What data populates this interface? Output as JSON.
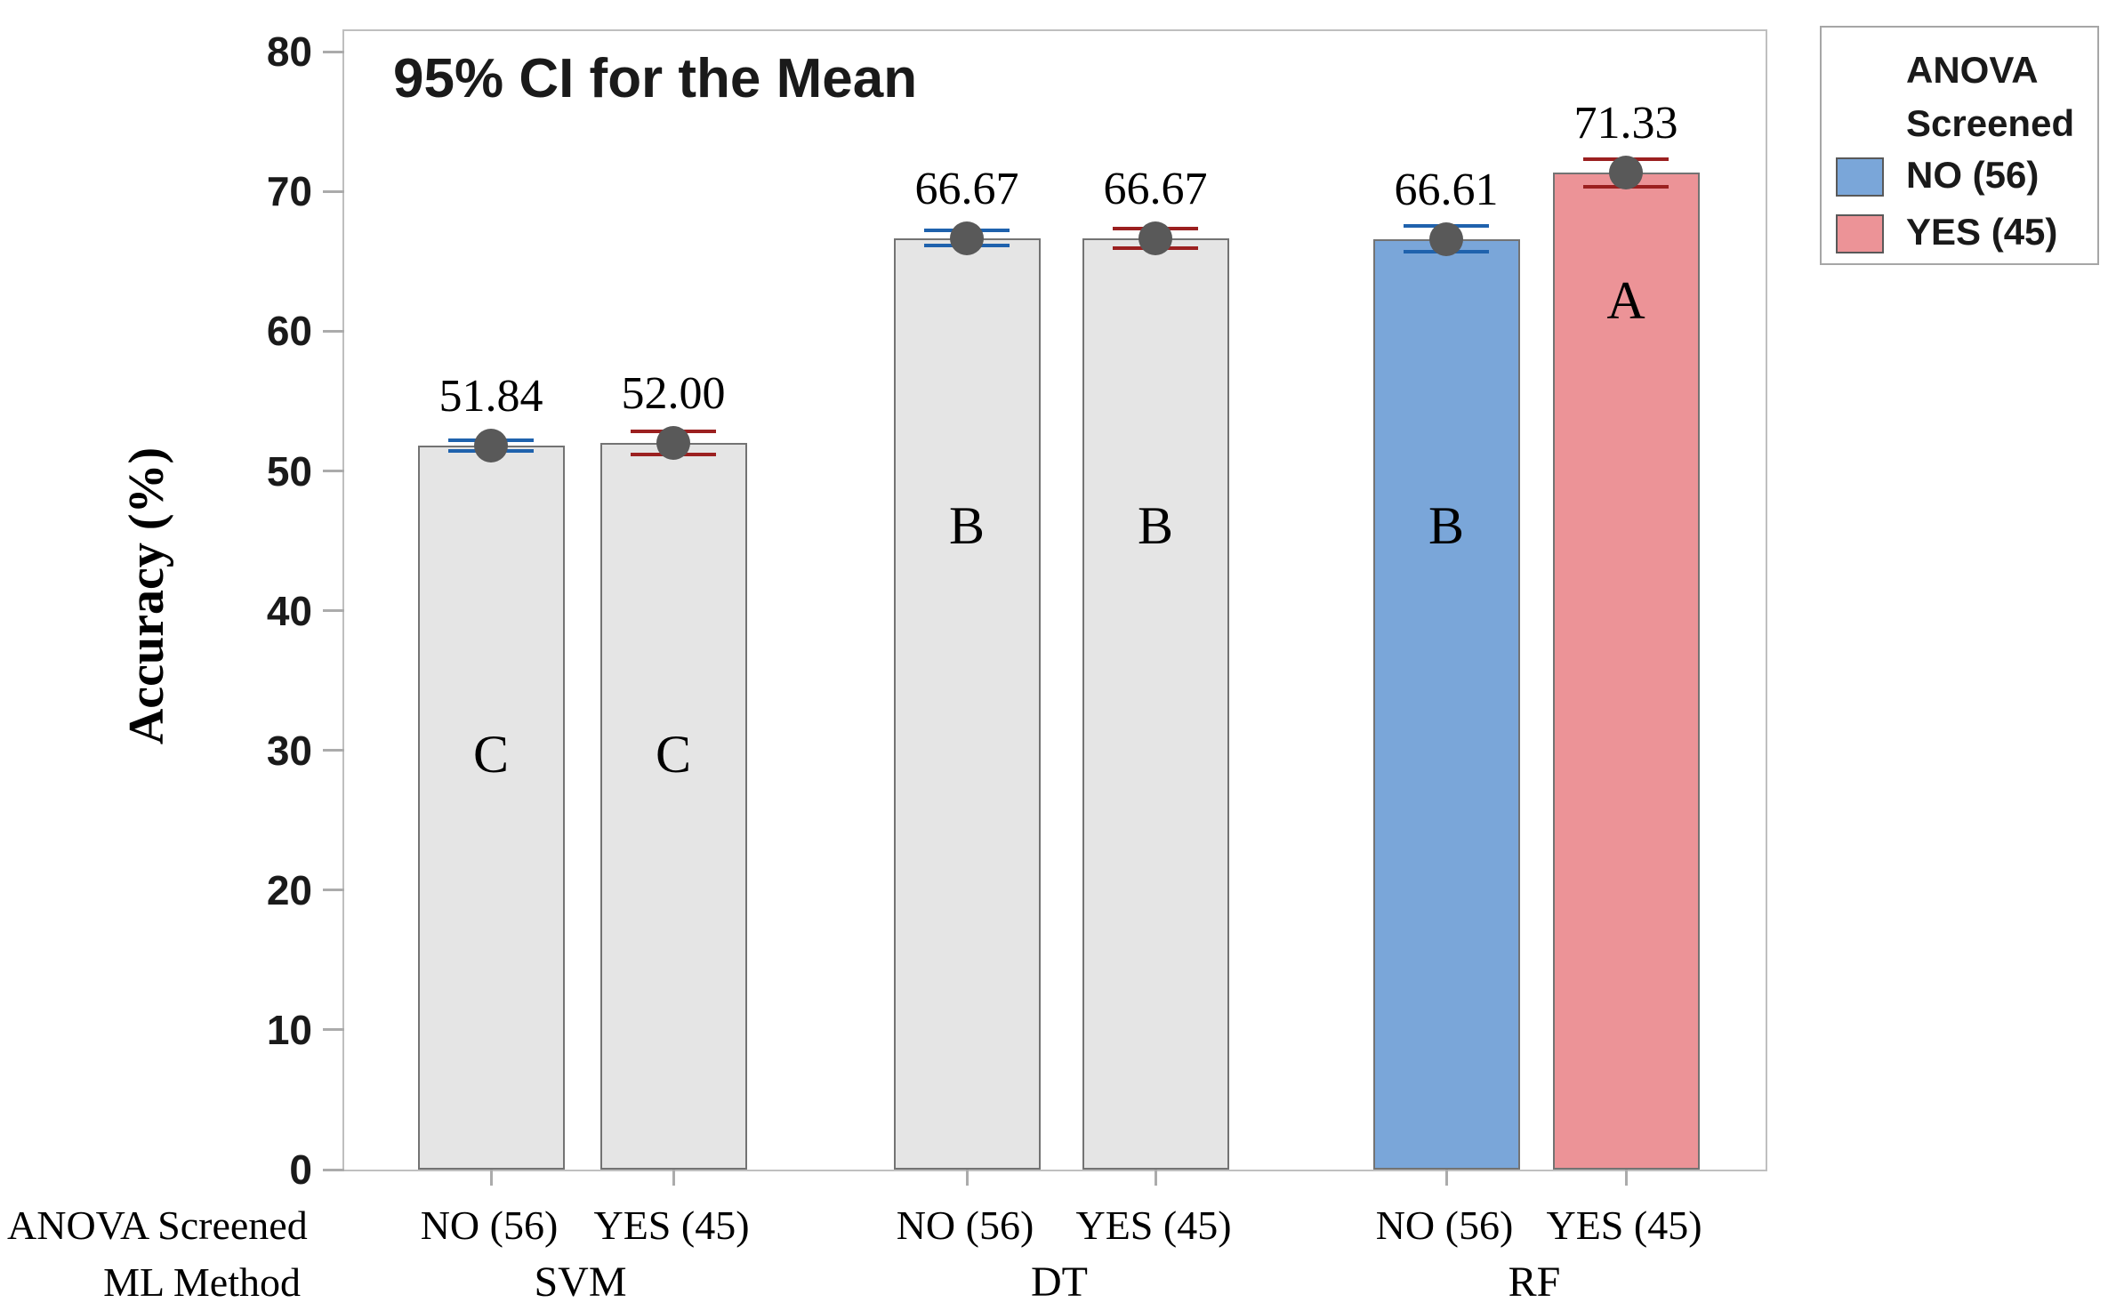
{
  "chart_data": {
    "type": "bar",
    "title": "95% CI for the Mean",
    "ylabel": "Accuracy (%)",
    "ylim": [
      0,
      80
    ],
    "yticks": [
      0,
      10,
      20,
      30,
      40,
      50,
      60,
      70,
      80
    ],
    "grid": false,
    "legend_position": "top-right-outside",
    "x_row_headers": {
      "row1": "ANOVA Screened",
      "row2": "ML Method"
    },
    "group_labels": [
      "SVM",
      "DT",
      "RF"
    ],
    "marker_color": "#595959",
    "bars": [
      {
        "ml_method": "SVM",
        "anova_screened": "NO (56)",
        "value": 51.84,
        "value_label": "51.84",
        "fill": "#E5E5E5",
        "ci_color": "#1F62AD",
        "ci_half_width": 0.38,
        "grouping_letter": "C",
        "letter_y": 29.7
      },
      {
        "ml_method": "SVM",
        "anova_screened": "YES (45)",
        "value": 52.0,
        "value_label": "52.00",
        "fill": "#E5E5E5",
        "ci_color": "#9B2020",
        "ci_half_width": 0.83,
        "grouping_letter": "C",
        "letter_y": 29.7
      },
      {
        "ml_method": "DT",
        "anova_screened": "NO (56)",
        "value": 66.67,
        "value_label": "66.67",
        "fill": "#E5E5E5",
        "ci_color": "#1F62AD",
        "ci_half_width": 0.55,
        "grouping_letter": "B",
        "letter_y": 46.1
      },
      {
        "ml_method": "DT",
        "anova_screened": "YES (45)",
        "value": 66.67,
        "value_label": "66.67",
        "fill": "#E5E5E5",
        "ci_color": "#9B2020",
        "ci_half_width": 0.7,
        "grouping_letter": "B",
        "letter_y": 46.1
      },
      {
        "ml_method": "RF",
        "anova_screened": "NO (56)",
        "value": 66.61,
        "value_label": "66.61",
        "fill": "#7AA6D9",
        "ci_color": "#1F62AD",
        "ci_half_width": 0.95,
        "grouping_letter": "B",
        "letter_y": 46.1
      },
      {
        "ml_method": "RF",
        "anova_screened": "YES (45)",
        "value": 71.33,
        "value_label": "71.33",
        "fill": "#EC9397",
        "ci_color": "#9B2020",
        "ci_half_width": 1.0,
        "grouping_letter": "A",
        "letter_y": 62.2
      }
    ]
  },
  "legend": {
    "title_line1": "ANOVA",
    "title_line2": "Screened",
    "items": [
      {
        "label": "NO (56)",
        "color": "#7AA6D9"
      },
      {
        "label": "YES (45)",
        "color": "#EC9397"
      }
    ]
  }
}
